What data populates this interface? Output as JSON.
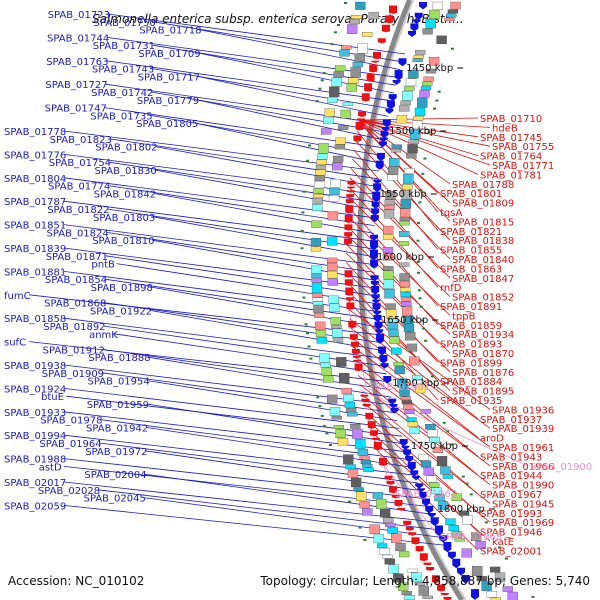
{
  "title": "Salmonella enterica subsp. enterica serovar Paratyphi B str....",
  "accession_text": "Accession: NC_010102",
  "topology_text": "Topology: circular; Length: 4,858,887 bp; Genes: 5,740",
  "colors": {
    "left_label": "#1a1ac8",
    "right_label": "#e01010",
    "pink_label": "#f090c8",
    "backbone": "#888888"
  },
  "scale_ticks": [
    "1450 kbp",
    "1500 kbp",
    "1550 kbp",
    "1600 kbp",
    "1650 kbp",
    "1700 kbp",
    "1750 kbp",
    "1800 kbp"
  ],
  "left_labels": [
    "SPAB_01723",
    "SPAB_01750",
    "SPAB_01718",
    "SPAB_01744",
    "SPAB_01731",
    "SPAB_01709",
    "SPAB_01763",
    "SPAB_01743",
    "SPAB_01717",
    "SPAB_01727",
    "SPAB_01742",
    "SPAB_01779",
    "SPAB_01747",
    "SPAB_01735",
    "SPAB_01805",
    "SPAB_01778",
    "SPAB_01823",
    "SPAB_01802",
    "SPAB_01776",
    "SPAB_01754",
    "SPAB_01830",
    "SPAB_01804",
    "SPAB_01774",
    "SPAB_01842",
    "SPAB_01787",
    "SPAB_01822",
    "SPAB_01803",
    "SPAB_01851",
    "SPAB_01824",
    "SPAB_01810",
    "SPAB_01839",
    "SPAB_01871",
    "pntB",
    "SPAB_01881",
    "SPAB_01854",
    "SPAB_01898",
    "fumC",
    "SPAB_01868",
    "SPAB_01922",
    "SPAB_01858",
    "SPAB_01892",
    "anmK",
    "sufC",
    "SPAB_01912",
    "SPAB_01888",
    "SPAB_01938",
    "SPAB_01909",
    "SPAB_01954",
    "SPAB_01924",
    "btuE",
    "SPAB_01959",
    "SPAB_01933",
    "SPAB_01978",
    "SPAB_01942",
    "SPAB_01994",
    "SPAB_01964",
    "SPAB_01972",
    "SPAB_01988",
    "astD",
    "SPAB_02004",
    "SPAB_02017",
    "SPAB_02028",
    "SPAB_02045",
    "SPAB_02059"
  ],
  "right_labels": [
    "SPAB_01710",
    "hdeB",
    "SPAB_01745",
    "SPAB_01755",
    "SPAB_01764",
    "SPAB_01771",
    "SPAB_01781",
    "SPAB_01788",
    "SPAB_01801",
    "SPAB_01809",
    "tqsA",
    "SPAB_01815",
    "SPAB_01821",
    "SPAB_01838",
    "SPAB_01855",
    "SPAB_01840",
    "SPAB_01863",
    "SPAB_01847",
    "rnfD",
    "SPAB_01852",
    "SPAB_01891",
    "tppB",
    "SPAB_01859",
    "SPAB_01934",
    "SPAB_01893",
    "SPAB_01870",
    "SPAB_01899",
    "SPAB_01876",
    "SPAB_01884",
    "SPAB_01895",
    "SPAB_01935",
    "SPAB_01936",
    "SPAB_01937",
    "SPAB_01939",
    "aroD",
    "SPAB_01961",
    "SPAB_01943",
    "SPAB_01966",
    "SPAB_01944",
    "SPAB_01990",
    "SPAB_01967",
    "SPAB_01945",
    "SPAB_01993",
    "SPAB_01969",
    "SPAB_01946",
    "katE",
    "SPAB_02001"
  ],
  "pink_labels": [
    "SPAB_01901",
    "SPAB_01900",
    "SPAB_01962",
    "SPAB_01968"
  ]
}
